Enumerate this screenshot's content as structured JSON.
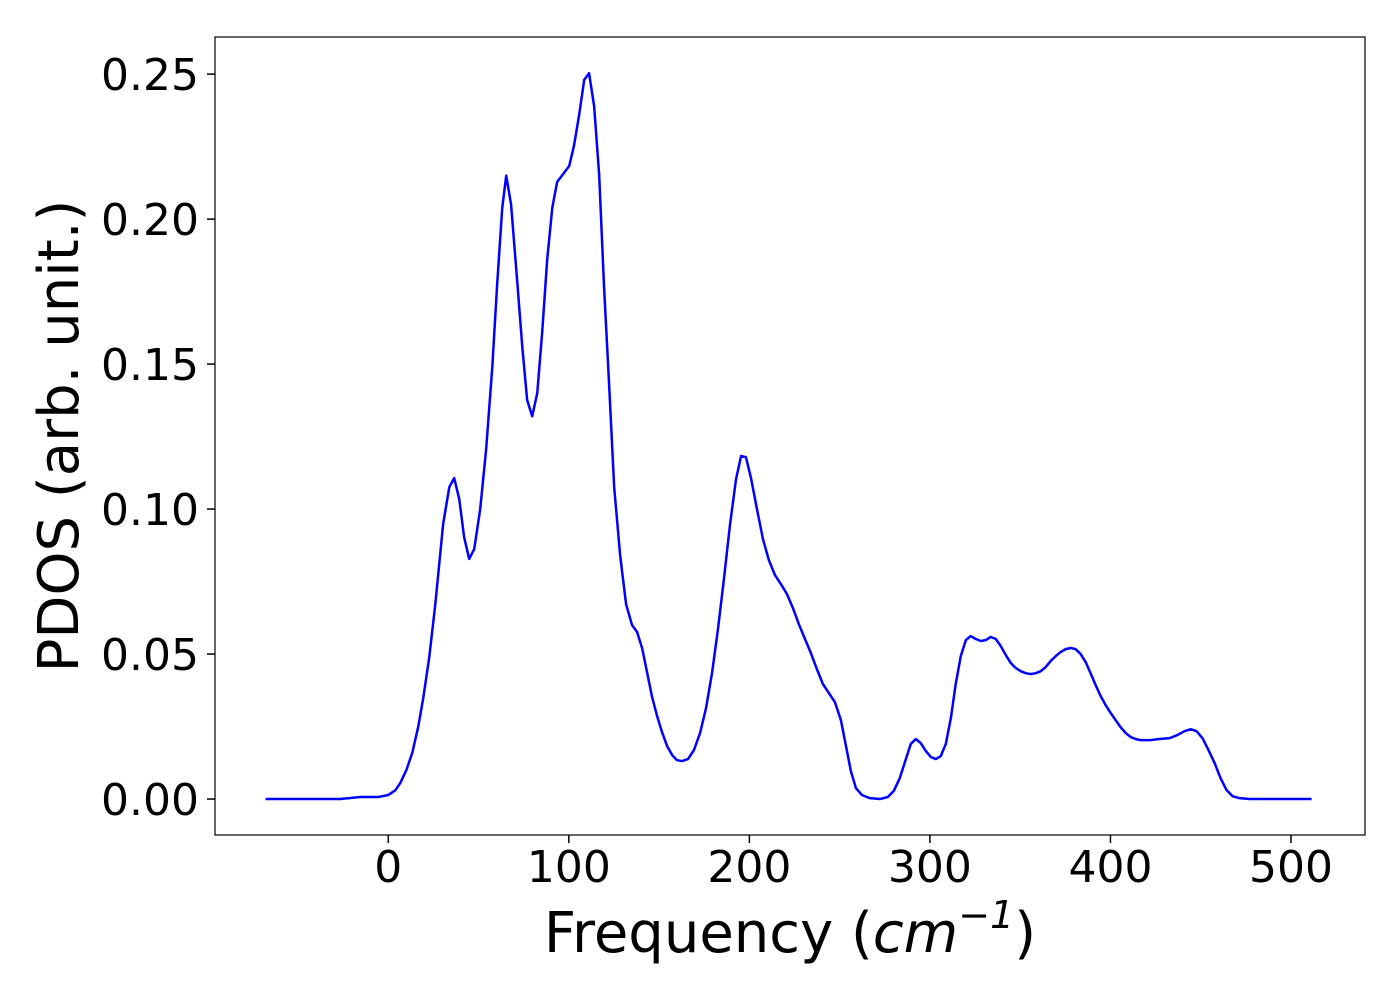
{
  "chart_data": {
    "type": "line",
    "xlabel_parts": [
      "Frequency (",
      "cm",
      "−1",
      ")"
    ],
    "ylabel": "PDOS (arb. unit.)",
    "color": "#0000ff",
    "xlim": [
      -96,
      541
    ],
    "ylim": [
      -0.0124,
      0.2628
    ],
    "xticks": [
      0,
      100,
      200,
      300,
      400,
      500
    ],
    "yticks": [
      {
        "value": 0,
        "label": "0.00"
      },
      {
        "value": 0.05,
        "label": "0.05"
      },
      {
        "value": 0.1,
        "label": "0.10"
      },
      {
        "value": 0.15,
        "label": "0.15"
      },
      {
        "value": 0.2,
        "label": "0.20"
      },
      {
        "value": 0.25,
        "label": "0.25"
      }
    ],
    "x": [
      -68,
      -26.6,
      -15.5,
      -5.5,
      0,
      3.9,
      6.6,
      10,
      13.3,
      16.6,
      19.4,
      22.7,
      26,
      30.4,
      33.8,
      36.5,
      39.3,
      42,
      44.8,
      47.6,
      50.9,
      54.2,
      57.6,
      60.3,
      63.1,
      65.3,
      68,
      71.4,
      74.2,
      76.9,
      79.7,
      82.5,
      85.2,
      88,
      90.8,
      93.5,
      96.8,
      100.2,
      102.9,
      105.7,
      108.5,
      111.2,
      114,
      116.8,
      119.5,
      122.3,
      125.1,
      128.4,
      131.7,
      135,
      137.8,
      140.6,
      143.3,
      146.1,
      148.9,
      151.6,
      154.4,
      157.2,
      159.9,
      162.7,
      166,
      169.3,
      172.7,
      176,
      179.3,
      182.6,
      185.9,
      189.3,
      192.6,
      195.4,
      198.1,
      200.9,
      204.2,
      207.5,
      210.8,
      214.2,
      217.5,
      220.8,
      224.1,
      227.4,
      230.8,
      234.1,
      237.4,
      240.7,
      244,
      247.4,
      250.7,
      253.5,
      256.2,
      259,
      262.3,
      266.7,
      272.3,
      276.7,
      280,
      283.3,
      286.7,
      289.4,
      292.2,
      294.9,
      297.7,
      300.5,
      303.3,
      306,
      308.8,
      311.6,
      314.3,
      317.1,
      319.9,
      322.6,
      325.4,
      328.2,
      330.9,
      333.7,
      336.5,
      339.2,
      342,
      344.8,
      347.5,
      350.3,
      353.1,
      355.8,
      358.6,
      361.4,
      364.1,
      366.9,
      369.7,
      372.4,
      375.2,
      378,
      380.7,
      383.5,
      386.3,
      389,
      391.8,
      394.6,
      397.3,
      400.1,
      402.9,
      405.6,
      408.4,
      411.2,
      413.9,
      416.7,
      421.7,
      427.2,
      432.8,
      437.2,
      441,
      444.4,
      447.7,
      451,
      454.3,
      457.7,
      461,
      464.3,
      467.6,
      471.5,
      477,
      511.4
    ],
    "values": [
      0,
      0,
      0.0007,
      0.0007,
      0.0014,
      0.003,
      0.0055,
      0.01,
      0.016,
      0.025,
      0.035,
      0.049,
      0.067,
      0.095,
      0.1076,
      0.1107,
      0.1034,
      0.0903,
      0.0828,
      0.0862,
      0.1,
      0.1207,
      0.149,
      0.1776,
      0.2038,
      0.215,
      0.205,
      0.1786,
      0.156,
      0.1376,
      0.132,
      0.14,
      0.1607,
      0.186,
      0.2038,
      0.2128,
      0.2155,
      0.2183,
      0.2255,
      0.2359,
      0.248,
      0.2503,
      0.239,
      0.2152,
      0.1766,
      0.143,
      0.1076,
      0.0841,
      0.0672,
      0.06,
      0.0576,
      0.052,
      0.0438,
      0.0352,
      0.0286,
      0.0231,
      0.0183,
      0.0152,
      0.0134,
      0.0131,
      0.0138,
      0.0169,
      0.0228,
      0.0314,
      0.0434,
      0.0586,
      0.0759,
      0.0948,
      0.1103,
      0.1183,
      0.1179,
      0.1107,
      0.1,
      0.0897,
      0.0824,
      0.0772,
      0.0741,
      0.0707,
      0.0659,
      0.0603,
      0.0552,
      0.0503,
      0.0448,
      0.0397,
      0.0366,
      0.0334,
      0.0272,
      0.0183,
      0.0097,
      0.0038,
      0.0014,
      0.0003,
      0,
      0.0007,
      0.0028,
      0.0072,
      0.0138,
      0.019,
      0.0207,
      0.0193,
      0.0166,
      0.0145,
      0.0138,
      0.0148,
      0.019,
      0.0279,
      0.0397,
      0.0493,
      0.0548,
      0.0562,
      0.0552,
      0.0545,
      0.0548,
      0.0559,
      0.0552,
      0.0528,
      0.0497,
      0.0469,
      0.0452,
      0.0441,
      0.0434,
      0.0431,
      0.0434,
      0.0441,
      0.0455,
      0.0476,
      0.0493,
      0.0507,
      0.0517,
      0.0521,
      0.0517,
      0.05,
      0.0472,
      0.0434,
      0.0393,
      0.0355,
      0.0324,
      0.0297,
      0.0272,
      0.0248,
      0.0228,
      0.0214,
      0.0207,
      0.0203,
      0.0203,
      0.0207,
      0.021,
      0.0221,
      0.0234,
      0.0241,
      0.0234,
      0.021,
      0.0169,
      0.0124,
      0.0072,
      0.0031,
      0.001,
      0.0003,
      0,
      0
    ]
  }
}
